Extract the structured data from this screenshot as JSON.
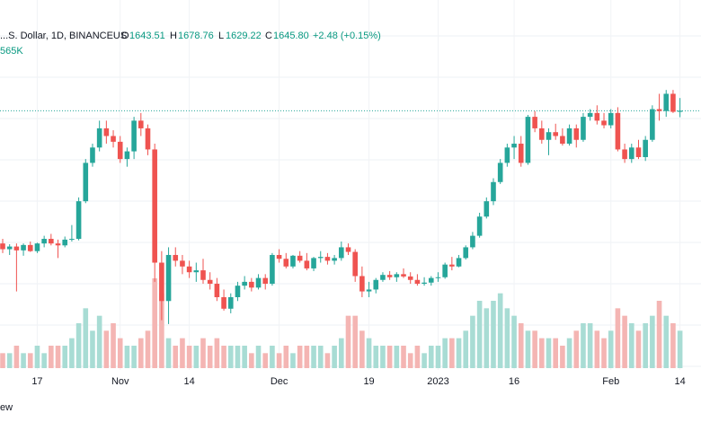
{
  "legend": {
    "symbol": "...S. Dollar, 1D, BINANCEUS",
    "open_label": "O",
    "open": "1643.51",
    "high_label": "H",
    "high": "1678.76",
    "low_label": "L",
    "low": "1629.22",
    "close_label": "C",
    "close": "1645.80",
    "change": "+2.48 (+0.15%)",
    "volume": "565K"
  },
  "footer_fragment": "ew",
  "colors": {
    "up": "#26a69a",
    "down": "#ef5350",
    "vol_up": "#a8dcd4",
    "vol_down": "#f4b5b3",
    "price_line": "#26a69a"
  },
  "chart_data": {
    "type": "candlestick",
    "x_ticks": [
      {
        "index": 5,
        "label": "17"
      },
      {
        "index": 17,
        "label": "Nov"
      },
      {
        "index": 27,
        "label": "14"
      },
      {
        "index": 40,
        "label": "Dec"
      },
      {
        "index": 53,
        "label": "19"
      },
      {
        "index": 63,
        "label": "2023"
      },
      {
        "index": 74,
        "label": "16"
      },
      {
        "index": 88,
        "label": "Feb"
      },
      {
        "index": 98,
        "label": "14"
      }
    ],
    "price_range": [
      1050,
      1780
    ],
    "current_price": 1645.8,
    "candles": [
      [
        1300,
        1312,
        1275,
        1285,
        2
      ],
      [
        1285,
        1298,
        1270,
        1292,
        2
      ],
      [
        1292,
        1300,
        1175,
        1282,
        3
      ],
      [
        1282,
        1300,
        1268,
        1296,
        2
      ],
      [
        1296,
        1305,
        1278,
        1280,
        2
      ],
      [
        1280,
        1302,
        1275,
        1300,
        3
      ],
      [
        1300,
        1320,
        1290,
        1312,
        2
      ],
      [
        1312,
        1325,
        1295,
        1300,
        3
      ],
      [
        1300,
        1310,
        1262,
        1295,
        3
      ],
      [
        1295,
        1318,
        1290,
        1310,
        3
      ],
      [
        1310,
        1348,
        1305,
        1312,
        4
      ],
      [
        1312,
        1420,
        1308,
        1410,
        6
      ],
      [
        1410,
        1520,
        1405,
        1510,
        8
      ],
      [
        1510,
        1560,
        1500,
        1550,
        5
      ],
      [
        1550,
        1620,
        1540,
        1600,
        7
      ],
      [
        1600,
        1620,
        1560,
        1580,
        5
      ],
      [
        1580,
        1595,
        1550,
        1565,
        6
      ],
      [
        1565,
        1580,
        1510,
        1520,
        4
      ],
      [
        1520,
        1550,
        1500,
        1540,
        3
      ],
      [
        1540,
        1630,
        1520,
        1620,
        3
      ],
      [
        1620,
        1640,
        1580,
        1600,
        4
      ],
      [
        1600,
        1610,
        1530,
        1545,
        5
      ],
      [
        1545,
        1560,
        1200,
        1250,
        12
      ],
      [
        1250,
        1280,
        1100,
        1150,
        10
      ],
      [
        1150,
        1290,
        1090,
        1270,
        4
      ],
      [
        1270,
        1290,
        1240,
        1255,
        3
      ],
      [
        1255,
        1270,
        1220,
        1240,
        4
      ],
      [
        1240,
        1255,
        1210,
        1225,
        3
      ],
      [
        1225,
        1250,
        1200,
        1230,
        3
      ],
      [
        1230,
        1260,
        1195,
        1205,
        4
      ],
      [
        1205,
        1225,
        1180,
        1195,
        3
      ],
      [
        1195,
        1210,
        1150,
        1160,
        4
      ],
      [
        1160,
        1180,
        1125,
        1130,
        3
      ],
      [
        1130,
        1170,
        1118,
        1160,
        3
      ],
      [
        1160,
        1200,
        1150,
        1190,
        3
      ],
      [
        1190,
        1215,
        1180,
        1200,
        3
      ],
      [
        1200,
        1210,
        1175,
        1185,
        2
      ],
      [
        1185,
        1220,
        1180,
        1210,
        3
      ],
      [
        1210,
        1220,
        1180,
        1195,
        2
      ],
      [
        1195,
        1275,
        1190,
        1270,
        3
      ],
      [
        1270,
        1285,
        1250,
        1260,
        2
      ],
      [
        1260,
        1275,
        1235,
        1240,
        3
      ],
      [
        1240,
        1270,
        1235,
        1268,
        2
      ],
      [
        1268,
        1280,
        1250,
        1255,
        3
      ],
      [
        1255,
        1275,
        1230,
        1235,
        3
      ],
      [
        1235,
        1265,
        1228,
        1262,
        3
      ],
      [
        1262,
        1280,
        1250,
        1265,
        3
      ],
      [
        1265,
        1275,
        1245,
        1255,
        2
      ],
      [
        1255,
        1270,
        1245,
        1262,
        3
      ],
      [
        1262,
        1305,
        1255,
        1290,
        4
      ],
      [
        1290,
        1300,
        1270,
        1278,
        7
      ],
      [
        1278,
        1285,
        1200,
        1215,
        7
      ],
      [
        1215,
        1240,
        1160,
        1175,
        5
      ],
      [
        1175,
        1200,
        1160,
        1180,
        4
      ],
      [
        1180,
        1210,
        1170,
        1205,
        3
      ],
      [
        1205,
        1225,
        1200,
        1218,
        3
      ],
      [
        1218,
        1228,
        1205,
        1212,
        3
      ],
      [
        1212,
        1225,
        1200,
        1220,
        3
      ],
      [
        1220,
        1235,
        1210,
        1214,
        3
      ],
      [
        1214,
        1225,
        1195,
        1205,
        2
      ],
      [
        1205,
        1220,
        1190,
        1195,
        3
      ],
      [
        1195,
        1212,
        1190,
        1198,
        2
      ],
      [
        1198,
        1215,
        1190,
        1210,
        3
      ],
      [
        1210,
        1225,
        1200,
        1212,
        3
      ],
      [
        1212,
        1250,
        1208,
        1245,
        4
      ],
      [
        1245,
        1265,
        1230,
        1240,
        4
      ],
      [
        1240,
        1270,
        1238,
        1262,
        4
      ],
      [
        1262,
        1295,
        1258,
        1290,
        5
      ],
      [
        1290,
        1330,
        1285,
        1320,
        7
      ],
      [
        1320,
        1380,
        1315,
        1370,
        9
      ],
      [
        1370,
        1420,
        1365,
        1410,
        8
      ],
      [
        1410,
        1470,
        1400,
        1460,
        9
      ],
      [
        1460,
        1520,
        1455,
        1510,
        10
      ],
      [
        1510,
        1560,
        1500,
        1550,
        8
      ],
      [
        1550,
        1580,
        1520,
        1560,
        7
      ],
      [
        1560,
        1580,
        1500,
        1510,
        6
      ],
      [
        1510,
        1635,
        1505,
        1630,
        5
      ],
      [
        1630,
        1645,
        1590,
        1600,
        5
      ],
      [
        1600,
        1620,
        1560,
        1570,
        4
      ],
      [
        1570,
        1600,
        1530,
        1590,
        4
      ],
      [
        1590,
        1612,
        1570,
        1580,
        4
      ],
      [
        1580,
        1600,
        1555,
        1560,
        3
      ],
      [
        1560,
        1610,
        1555,
        1600,
        4
      ],
      [
        1600,
        1610,
        1550,
        1570,
        5
      ],
      [
        1570,
        1640,
        1565,
        1630,
        6
      ],
      [
        1630,
        1650,
        1620,
        1640,
        6
      ],
      [
        1640,
        1660,
        1610,
        1620,
        5
      ],
      [
        1620,
        1640,
        1600,
        1608,
        4
      ],
      [
        1608,
        1650,
        1600,
        1640,
        5
      ],
      [
        1640,
        1655,
        1540,
        1545,
        8
      ],
      [
        1545,
        1560,
        1510,
        1520,
        7
      ],
      [
        1520,
        1560,
        1510,
        1550,
        6
      ],
      [
        1550,
        1570,
        1520,
        1525,
        5
      ],
      [
        1525,
        1580,
        1515,
        1570,
        6
      ],
      [
        1570,
        1660,
        1565,
        1650,
        7
      ],
      [
        1650,
        1690,
        1620,
        1645,
        9
      ],
      [
        1645,
        1700,
        1630,
        1690,
        7
      ],
      [
        1690,
        1700,
        1640,
        1643,
        6
      ],
      [
        1643,
        1679,
        1629,
        1646,
        5
      ]
    ]
  }
}
